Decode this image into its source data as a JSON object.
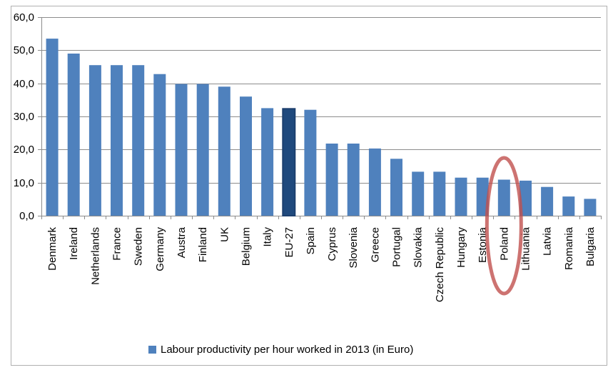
{
  "chart_data": {
    "type": "bar",
    "categories": [
      "Denmark",
      "Ireland",
      "Netherlands",
      "France",
      "Sweden",
      "Germany",
      "Austra",
      "Finland",
      "UK",
      "Belgium",
      "Italy",
      "EU-27",
      "Spain",
      "Cyprus",
      "Slovenia",
      "Greece",
      "Portugal",
      "Slovakia",
      "Czech Republic",
      "Hungary",
      "Estonia",
      "Poland",
      "Lithuania",
      "Latvia",
      "Romania",
      "Bulgaria"
    ],
    "series": [
      {
        "name": "Labour productivity per hour worked in 2013 (in Euro)",
        "values": [
          53.5,
          49.0,
          45.5,
          45.5,
          45.5,
          42.8,
          39.8,
          39.8,
          39.0,
          36.0,
          32.5,
          32.3,
          32.0,
          21.8,
          21.8,
          20.3,
          17.2,
          13.3,
          13.3,
          11.5,
          11.5,
          10.9,
          10.6,
          8.7,
          5.8,
          5.1
        ]
      }
    ],
    "ylim": [
      0,
      60
    ],
    "yticks": [
      "0,0",
      "10,0",
      "20,0",
      "30,0",
      "40,0",
      "50,0",
      "60,0"
    ],
    "grid": true,
    "legend_position": "bottom",
    "colors": {
      "bar": "#4f81bd",
      "highlight_bar": "#1f497d",
      "highlight_circle": "#c0504d"
    },
    "highlighted_bar": "EU-27",
    "circled_category": "Poland"
  }
}
